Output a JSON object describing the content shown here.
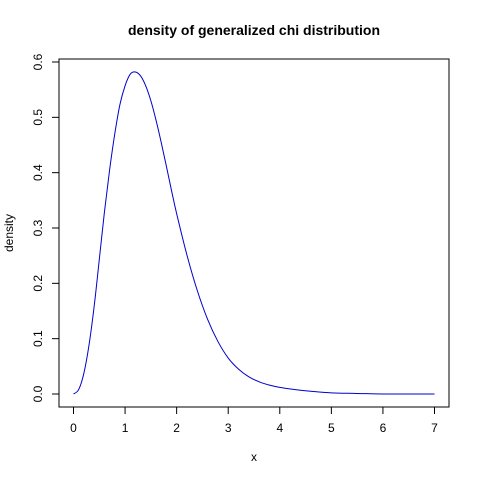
{
  "chart_data": {
    "type": "line",
    "title": "density of generalized chi distribution",
    "xlabel": "x",
    "ylabel": "density",
    "xlim": [
      0,
      7
    ],
    "ylim": [
      0,
      0.6
    ],
    "x_ticks": [
      0,
      1,
      2,
      3,
      4,
      5,
      6,
      7
    ],
    "y_ticks": [
      "0.0",
      "0.1",
      "0.2",
      "0.3",
      "0.4",
      "0.5",
      "0.6"
    ],
    "grid": false,
    "line_color": "#0000cd",
    "series": [
      {
        "x": [
          0.0,
          0.1,
          0.2,
          0.3,
          0.4,
          0.5,
          0.6,
          0.7,
          0.8,
          0.9,
          1.0,
          1.1,
          1.2,
          1.3,
          1.4,
          1.5,
          1.6,
          1.7,
          1.8,
          1.9,
          2.0,
          2.2,
          2.4,
          2.6,
          2.8,
          3.0,
          3.2,
          3.4,
          3.6,
          3.8,
          4.0,
          4.3,
          4.6,
          5.0,
          5.5,
          6.0,
          6.5,
          7.0
        ],
        "y": [
          0.0,
          0.008,
          0.037,
          0.088,
          0.158,
          0.243,
          0.329,
          0.405,
          0.47,
          0.523,
          0.557,
          0.578,
          0.582,
          0.575,
          0.557,
          0.53,
          0.495,
          0.455,
          0.412,
          0.368,
          0.326,
          0.251,
          0.187,
          0.135,
          0.095,
          0.065,
          0.045,
          0.031,
          0.022,
          0.016,
          0.012,
          0.008,
          0.005,
          0.002,
          0.001,
          0.0,
          0.0,
          0.0
        ]
      }
    ]
  }
}
